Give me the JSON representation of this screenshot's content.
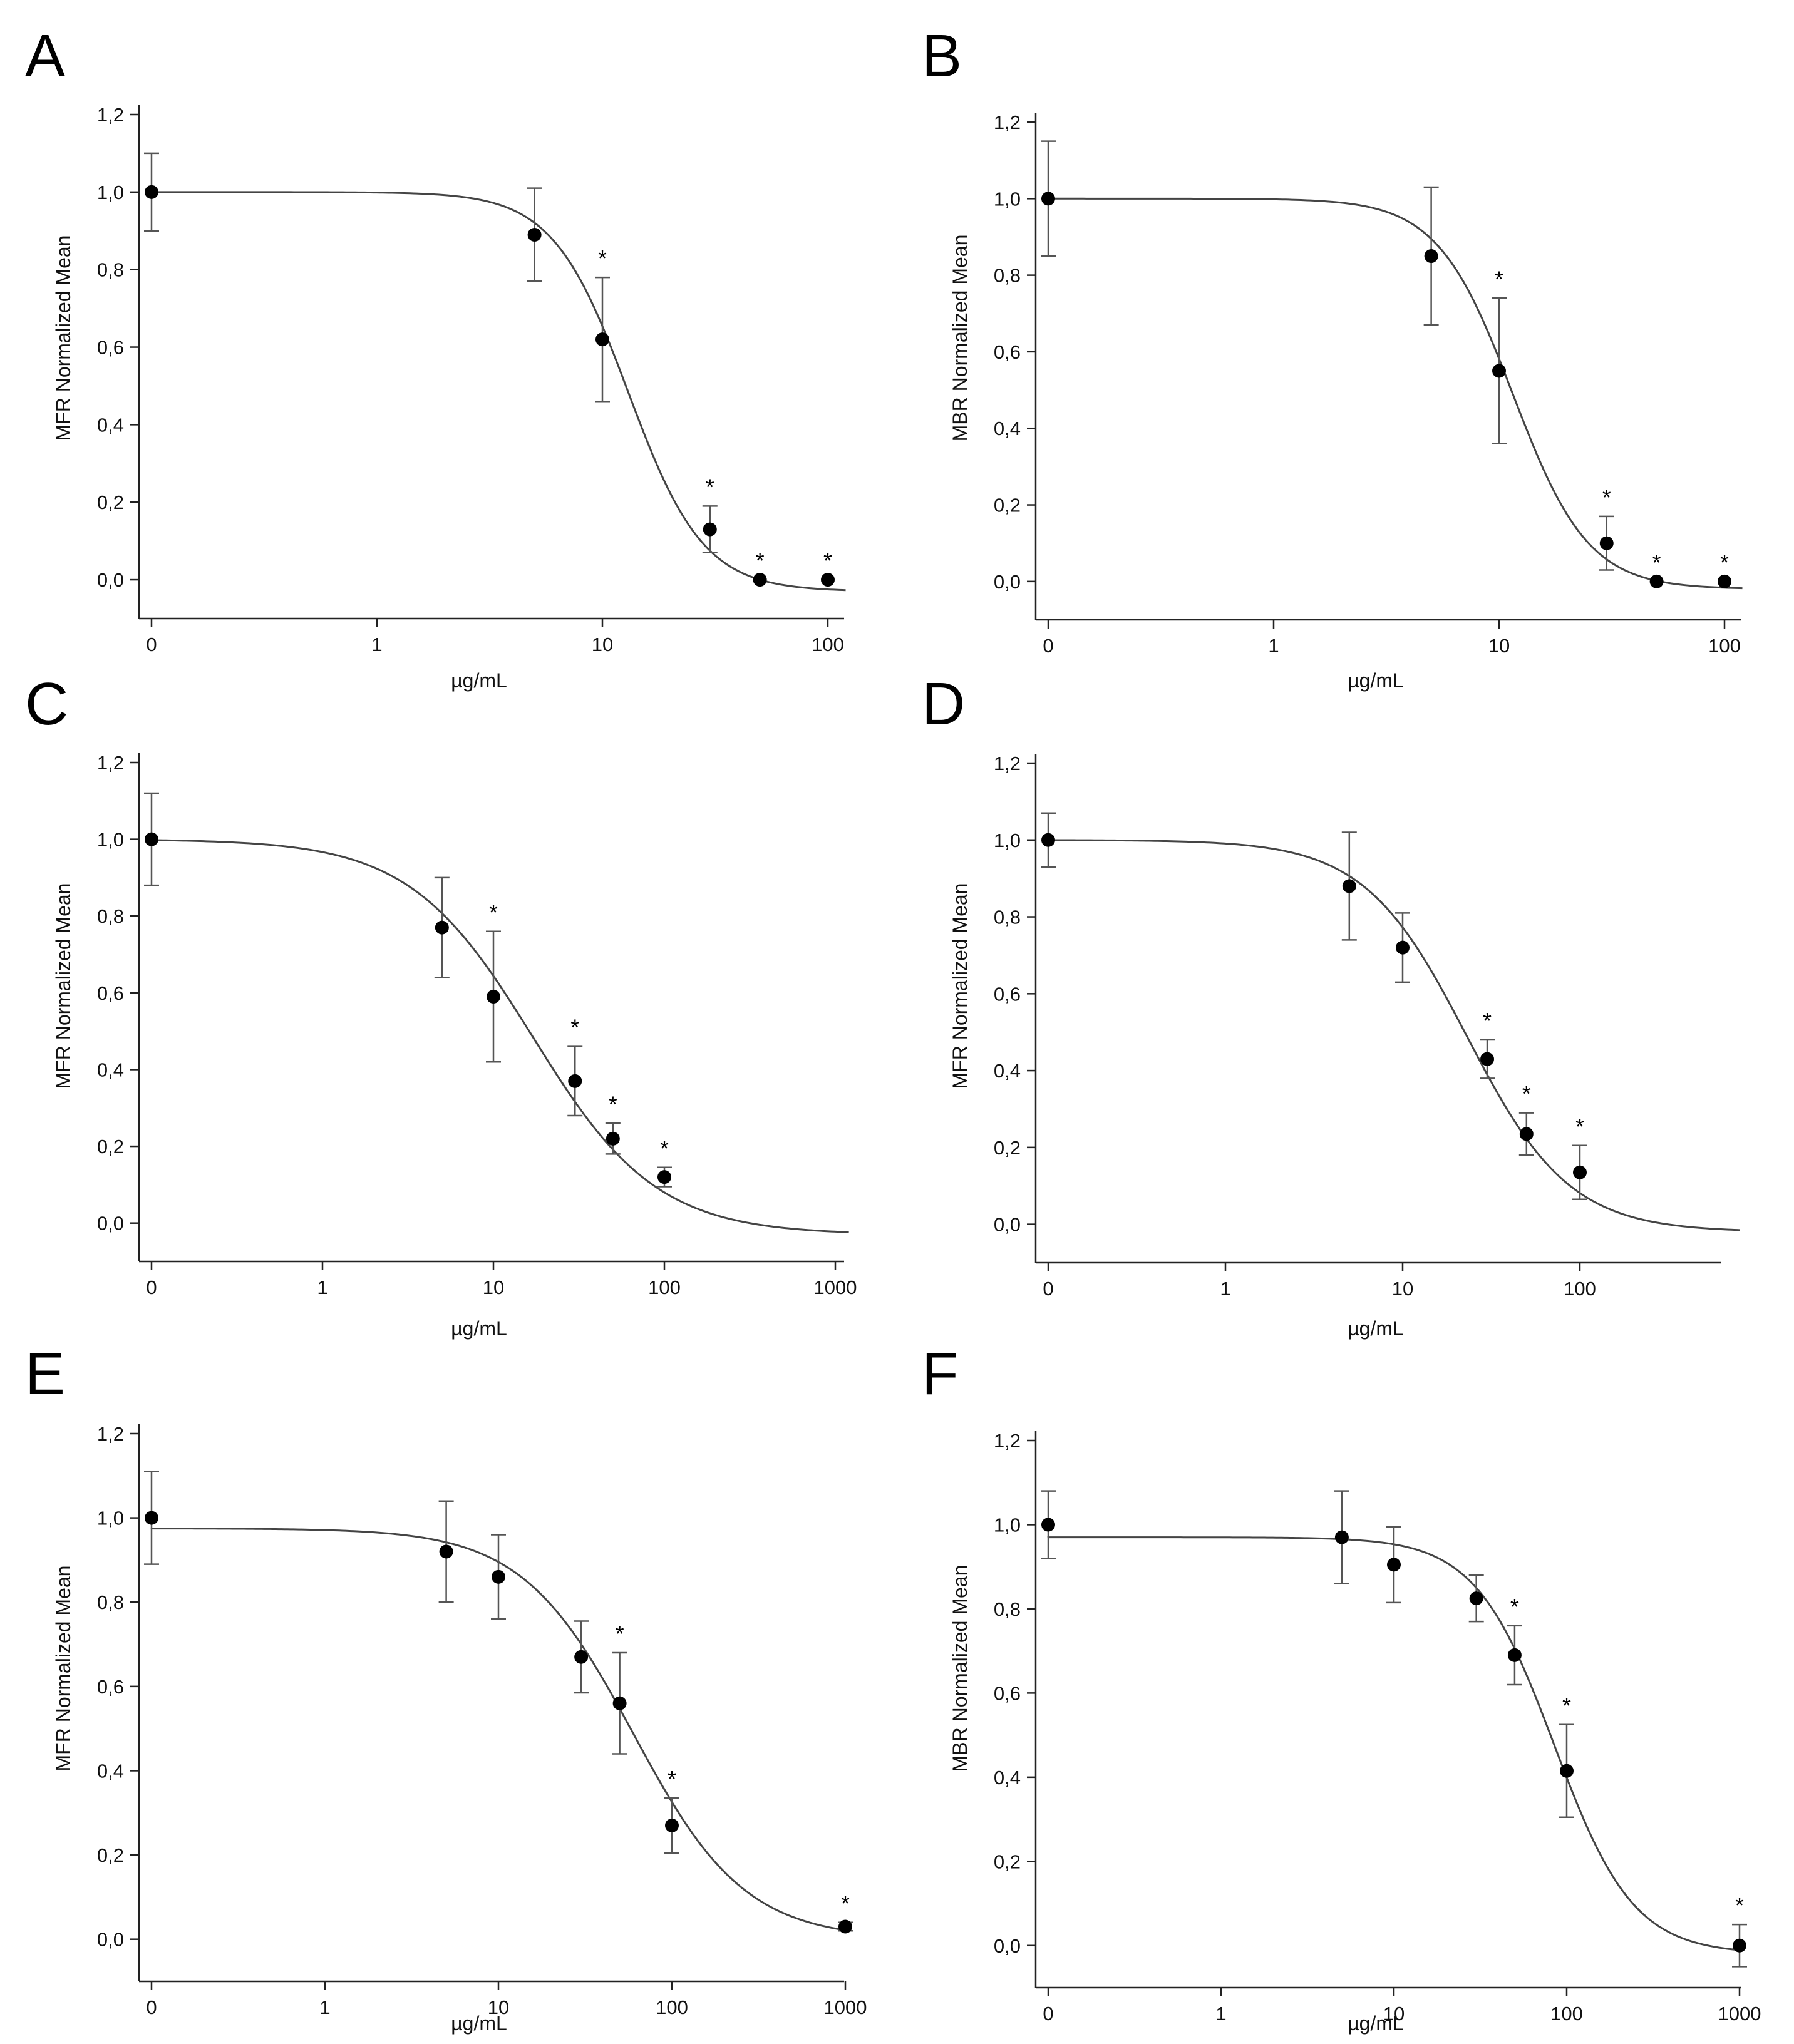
{
  "chart_data": [
    {
      "type": "scatter",
      "panel": "A",
      "ylabel": "MFR Normalized Mean",
      "xlabel": "µg/mL",
      "xscale": "log-with-zero",
      "x_tick_labels": [
        "0",
        "1",
        "10",
        "100"
      ],
      "y_tick_labels": [
        "0,0",
        "0,2",
        "0,4",
        "0,6",
        "0,8",
        "1,0",
        "1,2"
      ],
      "ylim": [
        -0.1,
        1.2
      ],
      "points": [
        {
          "x": 0,
          "y": 1.0,
          "err": 0.1,
          "sig": false
        },
        {
          "x": 5,
          "y": 0.89,
          "err": 0.12,
          "sig": false
        },
        {
          "x": 10,
          "y": 0.62,
          "err": 0.16,
          "sig": true
        },
        {
          "x": 30,
          "y": 0.13,
          "err": 0.06,
          "sig": true
        },
        {
          "x": 50,
          "y": 0.0,
          "err": 0.0,
          "sig": true
        },
        {
          "x": 100,
          "y": 0.0,
          "err": 0.0,
          "sig": true
        }
      ],
      "fit": {
        "top": 1.0,
        "bottom": -0.03,
        "ic50": 13,
        "hill": 2.6,
        "xmax": 120
      },
      "significance_marker": "*"
    },
    {
      "type": "scatter",
      "panel": "B",
      "ylabel": "MBR Normalized Mean",
      "xlabel": "µg/mL",
      "xscale": "log-with-zero",
      "x_tick_labels": [
        "0",
        "1",
        "10",
        "100"
      ],
      "y_tick_labels": [
        "0,0",
        "0,2",
        "0,4",
        "0,6",
        "0,8",
        "1,0",
        "1,2"
      ],
      "ylim": [
        -0.1,
        1.2
      ],
      "points": [
        {
          "x": 0,
          "y": 1.0,
          "err": 0.15,
          "sig": false
        },
        {
          "x": 5,
          "y": 0.85,
          "err": 0.18,
          "sig": false
        },
        {
          "x": 10,
          "y": 0.55,
          "err": 0.19,
          "sig": true
        },
        {
          "x": 30,
          "y": 0.1,
          "err": 0.07,
          "sig": true
        },
        {
          "x": 50,
          "y": 0.0,
          "err": 0.0,
          "sig": true
        },
        {
          "x": 100,
          "y": 0.0,
          "err": 0.0,
          "sig": true
        }
      ],
      "fit": {
        "top": 1.0,
        "bottom": -0.02,
        "ic50": 11.5,
        "hill": 2.6,
        "xmax": 120
      },
      "significance_marker": "*"
    },
    {
      "type": "scatter",
      "panel": "C",
      "ylabel": "MFR Normalized Mean",
      "xlabel": "µg/mL",
      "xscale": "log-with-zero",
      "x_tick_labels": [
        "0",
        "1",
        "10",
        "100",
        "1000"
      ],
      "y_tick_labels": [
        "0,0",
        "0,2",
        "0,4",
        "0,6",
        "0,8",
        "1,0",
        "1,2"
      ],
      "ylim": [
        -0.1,
        1.2
      ],
      "points": [
        {
          "x": 0,
          "y": 1.0,
          "err": 0.12,
          "sig": false
        },
        {
          "x": 5,
          "y": 0.77,
          "err": 0.13,
          "sig": false
        },
        {
          "x": 10,
          "y": 0.59,
          "err": 0.17,
          "sig": true
        },
        {
          "x": 30,
          "y": 0.37,
          "err": 0.09,
          "sig": true
        },
        {
          "x": 50,
          "y": 0.22,
          "err": 0.04,
          "sig": true
        },
        {
          "x": 100,
          "y": 0.12,
          "err": 0.025,
          "sig": true
        }
      ],
      "fit": {
        "top": 1.0,
        "bottom": -0.03,
        "ic50": 17,
        "hill": 1.2,
        "xmax": 1200
      },
      "significance_marker": "*"
    },
    {
      "type": "scatter",
      "panel": "D",
      "ylabel": "MFR Normalized Mean",
      "xlabel": "µg/mL",
      "xscale": "log-with-zero",
      "x_tick_labels": [
        "0",
        "1",
        "10",
        "100"
      ],
      "y_tick_labels": [
        "0,0",
        "0,2",
        "0,4",
        "0,6",
        "0,8",
        "1,0",
        "1,2"
      ],
      "ylim": [
        -0.1,
        1.2
      ],
      "points": [
        {
          "x": 0,
          "y": 1.0,
          "err": 0.07,
          "sig": false
        },
        {
          "x": 5,
          "y": 0.88,
          "err": 0.14,
          "sig": false
        },
        {
          "x": 10,
          "y": 0.72,
          "err": 0.09,
          "sig": false
        },
        {
          "x": 30,
          "y": 0.43,
          "err": 0.05,
          "sig": true
        },
        {
          "x": 50,
          "y": 0.235,
          "err": 0.055,
          "sig": true
        },
        {
          "x": 100,
          "y": 0.135,
          "err": 0.07,
          "sig": true
        }
      ],
      "fit": {
        "top": 1.0,
        "bottom": -0.02,
        "ic50": 23,
        "hill": 1.5,
        "xmax": 800
      },
      "significance_marker": "*"
    },
    {
      "type": "scatter",
      "panel": "E",
      "ylabel": "MFR Normalized Mean",
      "xlabel": "µg/mL",
      "xscale": "log-with-zero",
      "x_tick_labels": [
        "0",
        "1",
        "10",
        "100",
        "1000"
      ],
      "y_tick_labels": [
        "0,0",
        "0,2",
        "0,4",
        "0,6",
        "0,8",
        "1,0",
        "1,2"
      ],
      "ylim": [
        -0.1,
        1.2
      ],
      "points": [
        {
          "x": 0,
          "y": 1.0,
          "err": 0.11,
          "sig": false
        },
        {
          "x": 5,
          "y": 0.92,
          "err": 0.12,
          "sig": false
        },
        {
          "x": 10,
          "y": 0.86,
          "err": 0.1,
          "sig": false
        },
        {
          "x": 30,
          "y": 0.67,
          "err": 0.085,
          "sig": false
        },
        {
          "x": 50,
          "y": 0.56,
          "err": 0.12,
          "sig": true
        },
        {
          "x": 100,
          "y": 0.27,
          "err": 0.065,
          "sig": true
        },
        {
          "x": 1000,
          "y": 0.03,
          "err": 0.01,
          "sig": true
        }
      ],
      "fit": {
        "top": 0.975,
        "bottom": 0.0,
        "ic50": 60,
        "hill": 1.35,
        "xmax": 1000
      },
      "significance_marker": "*"
    },
    {
      "type": "scatter",
      "panel": "F",
      "ylabel": "MBR Normalized Mean",
      "xlabel": "µg/mL",
      "xscale": "log-with-zero",
      "x_tick_labels": [
        "0",
        "1",
        "10",
        "100",
        "1000"
      ],
      "y_tick_labels": [
        "0,0",
        "0,2",
        "0,4",
        "0,6",
        "0,8",
        "1,0",
        "1,2"
      ],
      "ylim": [
        -0.1,
        1.2
      ],
      "points": [
        {
          "x": 0,
          "y": 1.0,
          "err": 0.08,
          "sig": false
        },
        {
          "x": 5,
          "y": 0.97,
          "err": 0.11,
          "sig": false
        },
        {
          "x": 10,
          "y": 0.905,
          "err": 0.09,
          "sig": false
        },
        {
          "x": 30,
          "y": 0.825,
          "err": 0.055,
          "sig": false
        },
        {
          "x": 50,
          "y": 0.69,
          "err": 0.07,
          "sig": true
        },
        {
          "x": 100,
          "y": 0.415,
          "err": 0.11,
          "sig": true
        },
        {
          "x": 1000,
          "y": 0.0,
          "err": 0.05,
          "sig": true
        }
      ],
      "fit": {
        "top": 0.97,
        "bottom": -0.02,
        "ic50": 85,
        "hill": 1.9,
        "xmax": 1000
      },
      "significance_marker": "*"
    }
  ]
}
